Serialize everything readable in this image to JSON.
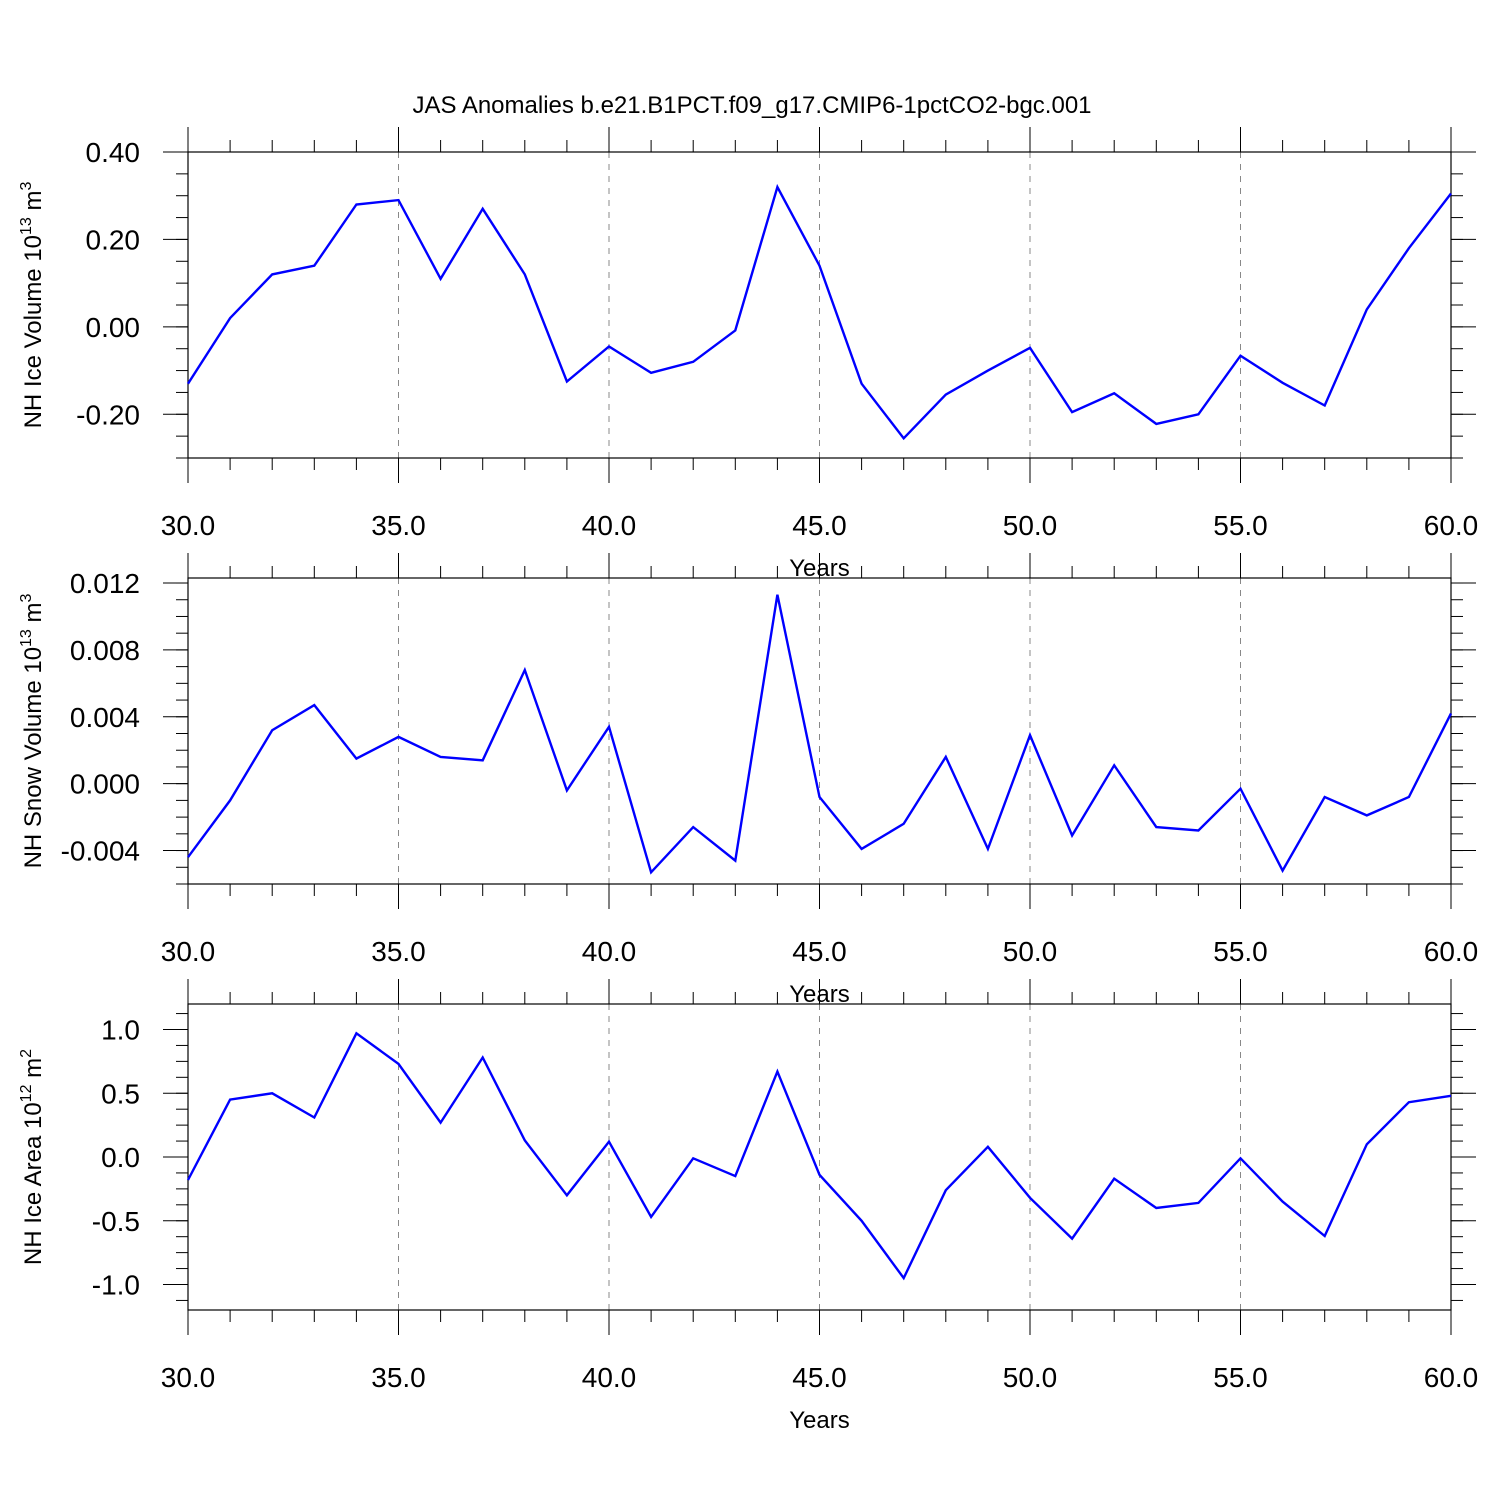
{
  "title": "JAS Anomalies b.e21.B1PCT.f09_g17.CMIP6-1pctCO2-bgc.001",
  "line_color": "#0000ff",
  "chart_data": [
    {
      "type": "line",
      "ylabel": {
        "text": "NH Ice Volume 10",
        "sup": "13",
        "unit": " m",
        "unit_sup": "3"
      },
      "xlabel": "Years",
      "xlim": [
        30,
        60
      ],
      "ylim": [
        -0.3,
        0.4
      ],
      "x_ticks": [
        "30.0",
        "35.0",
        "40.0",
        "45.0",
        "50.0",
        "55.0",
        "60.0"
      ],
      "y_ticks": [
        "0.40",
        "0.20",
        "0.00",
        "-0.20"
      ],
      "y_tick_values": [
        0.4,
        0.2,
        0.0,
        -0.2
      ],
      "grid": "vertical dashed at major x ticks",
      "series": [
        {
          "x": [
            30,
            31,
            32,
            33,
            34,
            35,
            36,
            37,
            38,
            39,
            40,
            41,
            42,
            43,
            44,
            45,
            46,
            47,
            48,
            49,
            50,
            51,
            52,
            53,
            54,
            55,
            56,
            57,
            58,
            59,
            60
          ],
          "values": [
            -0.13,
            0.02,
            0.12,
            0.14,
            0.28,
            0.29,
            0.11,
            0.27,
            0.12,
            -0.125,
            -0.045,
            -0.105,
            -0.08,
            -0.008,
            0.32,
            0.14,
            -0.13,
            -0.255,
            -0.155,
            -0.1,
            -0.048,
            -0.195,
            -0.152,
            -0.222,
            -0.2,
            -0.066,
            -0.128,
            -0.18,
            0.04,
            0.18,
            0.305
          ]
        }
      ]
    },
    {
      "type": "line",
      "ylabel": {
        "text": "NH Snow Volume 10",
        "sup": "13",
        "unit": " m",
        "unit_sup": "3"
      },
      "xlabel": "Years",
      "xlim": [
        30,
        60
      ],
      "ylim": [
        -0.006,
        0.0123
      ],
      "x_ticks": [
        "30.0",
        "35.0",
        "40.0",
        "45.0",
        "50.0",
        "55.0",
        "60.0"
      ],
      "y_ticks": [
        "0.012",
        "0.008",
        "0.004",
        "0.000",
        "-0.004"
      ],
      "y_tick_values": [
        0.012,
        0.008,
        0.004,
        0.0,
        -0.004
      ],
      "grid": "vertical dashed at major x ticks",
      "series": [
        {
          "x": [
            30,
            31,
            32,
            33,
            34,
            35,
            36,
            37,
            38,
            39,
            40,
            41,
            42,
            43,
            44,
            45,
            46,
            47,
            48,
            49,
            50,
            51,
            52,
            53,
            54,
            55,
            56,
            57,
            58,
            59,
            60
          ],
          "values": [
            -0.0044,
            -0.001,
            0.0032,
            0.0047,
            0.0015,
            0.0028,
            0.0016,
            0.0014,
            0.0068,
            -0.0004,
            0.0034,
            -0.0053,
            -0.0026,
            -0.0046,
            0.0113,
            -0.0008,
            -0.0039,
            -0.0024,
            0.0016,
            -0.0039,
            0.0029,
            -0.0031,
            0.0011,
            -0.0026,
            -0.0028,
            -0.0003,
            -0.0052,
            -0.0008,
            -0.0019,
            -0.0008,
            0.0042
          ]
        }
      ]
    },
    {
      "type": "line",
      "ylabel": {
        "text": "NH Ice Area 10",
        "sup": "12",
        "unit": " m",
        "unit_sup": "2"
      },
      "xlabel": "Years",
      "xlim": [
        30,
        60
      ],
      "ylim": [
        -1.2,
        1.2
      ],
      "x_ticks": [
        "30.0",
        "35.0",
        "40.0",
        "45.0",
        "50.0",
        "55.0",
        "60.0"
      ],
      "y_ticks": [
        "1.0",
        "0.5",
        "0.0",
        "-0.5",
        "-1.0"
      ],
      "y_tick_values": [
        1.0,
        0.5,
        0.0,
        -0.5,
        -1.0
      ],
      "grid": "vertical dashed at major x ticks",
      "series": [
        {
          "x": [
            30,
            31,
            32,
            33,
            34,
            35,
            36,
            37,
            38,
            39,
            40,
            41,
            42,
            43,
            44,
            45,
            46,
            47,
            48,
            49,
            50,
            51,
            52,
            53,
            54,
            55,
            56,
            57,
            58,
            59,
            60
          ],
          "values": [
            -0.18,
            0.45,
            0.5,
            0.31,
            0.97,
            0.73,
            0.27,
            0.78,
            0.13,
            -0.3,
            0.12,
            -0.47,
            -0.01,
            -0.15,
            0.67,
            -0.14,
            -0.5,
            -0.95,
            -0.26,
            0.08,
            -0.32,
            -0.64,
            -0.17,
            -0.4,
            -0.36,
            -0.01,
            -0.35,
            -0.62,
            0.1,
            0.43,
            0.48
          ]
        }
      ]
    }
  ]
}
